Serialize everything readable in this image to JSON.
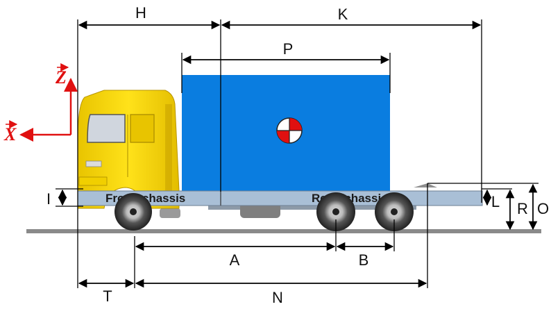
{
  "dimensions": {
    "H": "H",
    "K": "K",
    "P": "P",
    "I": "I",
    "L": "L",
    "R": "R",
    "O": "O",
    "A": "A",
    "B": "B",
    "T": "T",
    "N": "N"
  },
  "chassis": {
    "front": "Front  chassis",
    "rear": "Rear  chassis"
  },
  "axes": {
    "z": "Z",
    "x": "X"
  },
  "colors": {
    "cargo_box": "#0a7de0",
    "cab": "#f5d400",
    "chassis": "#a9bfd6",
    "axis": "#e01010",
    "ground": "#8a8a8a"
  },
  "icons": {
    "center_of_gravity": "center-of-gravity-icon"
  }
}
